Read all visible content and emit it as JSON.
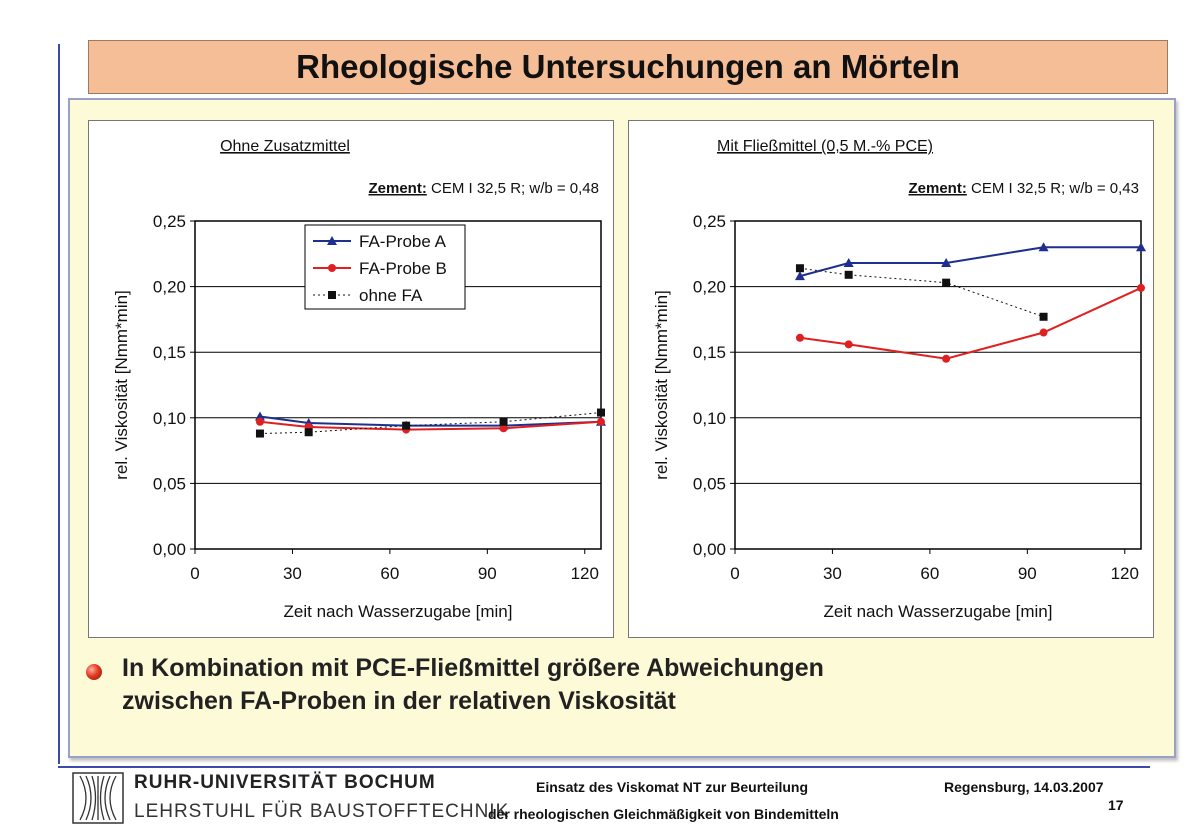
{
  "title": "Rheologische Untersuchungen an Mörteln",
  "chart_data": [
    {
      "type": "line",
      "title": "Ohne Zusatzmittel",
      "subtitle_label": "Zement:",
      "subtitle_value": "CEM I 32,5 R; w/b = 0,48",
      "xlabel": "Zeit nach Wasserzugabe [min]",
      "ylabel": "rel. Viskosität [Nmm*min]",
      "xlim": [
        0,
        125
      ],
      "ylim": [
        0,
        0.25
      ],
      "x_ticks": [
        "0",
        "30",
        "60",
        "90",
        "120"
      ],
      "y_ticks": [
        "0,00",
        "0,05",
        "0,10",
        "0,15",
        "0,20",
        "0,25"
      ],
      "grid": true,
      "legend": "top-right",
      "series": [
        {
          "name": "FA-Probe A",
          "color": "#1f2f8f",
          "marker": "triangle",
          "style": "solid",
          "x": [
            20,
            35,
            65,
            95,
            125
          ],
          "y": [
            0.101,
            0.096,
            0.094,
            0.094,
            0.097
          ]
        },
        {
          "name": "FA-Probe B",
          "color": "#e02020",
          "marker": "circle",
          "style": "solid",
          "x": [
            20,
            35,
            65,
            95,
            125
          ],
          "y": [
            0.097,
            0.093,
            0.091,
            0.092,
            0.097
          ]
        },
        {
          "name": "ohne FA",
          "color": "#111111",
          "marker": "square",
          "style": "dotted",
          "x": [
            20,
            35,
            65,
            95,
            125
          ],
          "y": [
            0.088,
            0.089,
            0.094,
            0.097,
            0.104
          ]
        }
      ]
    },
    {
      "type": "line",
      "title": "Mit Fließmittel (0,5 M.-% PCE)",
      "subtitle_label": "Zement:",
      "subtitle_value": "CEM I 32,5 R; w/b = 0,43",
      "xlabel": "Zeit nach Wasserzugabe [min]",
      "ylabel": "rel. Viskosität [Nmm*min]",
      "xlim": [
        0,
        125
      ],
      "ylim": [
        0,
        0.25
      ],
      "x_ticks": [
        "0",
        "30",
        "60",
        "90",
        "120"
      ],
      "y_ticks": [
        "0,00",
        "0,05",
        "0,10",
        "0,15",
        "0,20",
        "0,25"
      ],
      "grid": true,
      "legend": "none",
      "series": [
        {
          "name": "FA-Probe A",
          "color": "#1f2f8f",
          "marker": "triangle",
          "style": "solid",
          "x": [
            20,
            35,
            65,
            95,
            125
          ],
          "y": [
            0.208,
            0.218,
            0.218,
            0.23,
            0.23
          ]
        },
        {
          "name": "FA-Probe B",
          "color": "#e02020",
          "marker": "circle",
          "style": "solid",
          "x": [
            20,
            35,
            65,
            95,
            125
          ],
          "y": [
            0.161,
            0.156,
            0.145,
            0.165,
            0.199
          ]
        },
        {
          "name": "ohne FA",
          "color": "#111111",
          "marker": "square",
          "style": "dotted",
          "x": [
            20,
            35,
            65,
            95
          ],
          "y": [
            0.214,
            0.209,
            0.203,
            0.177
          ]
        }
      ]
    }
  ],
  "bullet": {
    "line1": "In Kombination mit PCE-Fließmittel größere Abweichungen",
    "line2": "zwischen FA-Proben in der relativen Viskosität"
  },
  "footer": {
    "university": "RUHR-UNIVERSITÄT BOCHUM",
    "chair": "LEHRSTUHL FÜR BAUSTOFFTECHNIK",
    "talk_line1": "Einsatz des Viskomat NT zur Beurteilung",
    "talk_line2": "der rheologischen Gleichmäßigkeit von Bindemitteln",
    "place_date": "Regensburg, 14.03.2007",
    "page_number": "17"
  },
  "colors": {
    "title_background": "#f6be96",
    "panel_background": "#fdfbd7",
    "accent_rule": "#3b4aa8"
  }
}
